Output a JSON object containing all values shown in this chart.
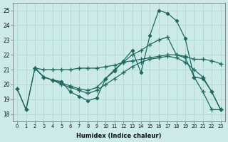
{
  "bg_color": "#cceae8",
  "grid_color": "#b0d8d5",
  "line_color": "#1e6b5e",
  "xlabel": "Humidex (Indice chaleur)",
  "ylim": [
    17.5,
    25.5
  ],
  "xlim": [
    -0.5,
    23.5
  ],
  "yticks": [
    18,
    19,
    20,
    21,
    22,
    23,
    24,
    25
  ],
  "xticks": [
    0,
    1,
    2,
    3,
    4,
    5,
    6,
    7,
    8,
    9,
    10,
    11,
    12,
    13,
    14,
    15,
    16,
    17,
    18,
    19,
    20,
    21,
    22,
    23
  ],
  "line1_x": [
    0,
    1,
    2,
    3,
    4,
    5,
    6,
    7,
    8,
    9,
    10,
    11,
    12,
    13,
    14,
    15,
    16,
    17,
    18,
    19,
    20,
    21,
    22,
    23
  ],
  "line1_y": [
    19.7,
    18.3,
    21.1,
    20.5,
    20.3,
    20.2,
    19.5,
    19.2,
    18.9,
    19.1,
    20.4,
    20.9,
    21.6,
    22.3,
    20.8,
    23.3,
    25.0,
    24.8,
    24.3,
    23.1,
    20.5,
    20.4,
    19.5,
    18.3
  ],
  "line2_x": [
    2,
    3,
    4,
    5,
    6,
    7,
    8,
    9,
    10,
    11,
    12,
    13,
    14,
    15,
    16,
    17,
    18,
    19,
    20,
    21,
    22,
    23
  ],
  "line2_y": [
    21.1,
    21.0,
    21.0,
    21.0,
    21.0,
    21.1,
    21.1,
    21.1,
    21.2,
    21.3,
    21.5,
    21.6,
    21.7,
    21.8,
    21.9,
    22.0,
    22.0,
    21.9,
    21.7,
    21.7,
    21.6,
    21.4
  ],
  "line3_x": [
    0,
    1,
    2,
    3,
    4,
    5,
    6,
    7,
    8,
    9,
    10,
    11,
    12,
    13,
    14,
    15,
    16,
    17,
    18,
    19,
    20,
    21,
    22,
    23
  ],
  "line3_y": [
    19.7,
    18.3,
    21.1,
    20.5,
    20.3,
    20.1,
    19.9,
    19.7,
    19.6,
    19.8,
    20.4,
    21.0,
    21.5,
    22.0,
    22.3,
    22.7,
    23.0,
    23.2,
    22.0,
    21.8,
    20.5,
    19.5,
    18.3,
    18.3
  ],
  "line4_x": [
    2,
    3,
    4,
    5,
    6,
    7,
    8,
    9,
    10,
    11,
    12,
    13,
    14,
    15,
    16,
    17,
    18,
    19,
    20,
    21,
    22,
    23
  ],
  "line4_y": [
    21.1,
    20.5,
    20.3,
    20.0,
    19.8,
    19.6,
    19.4,
    19.6,
    20.0,
    20.4,
    20.8,
    21.2,
    21.5,
    21.7,
    21.8,
    21.9,
    21.8,
    21.5,
    21.0,
    20.5,
    19.5,
    18.3
  ]
}
